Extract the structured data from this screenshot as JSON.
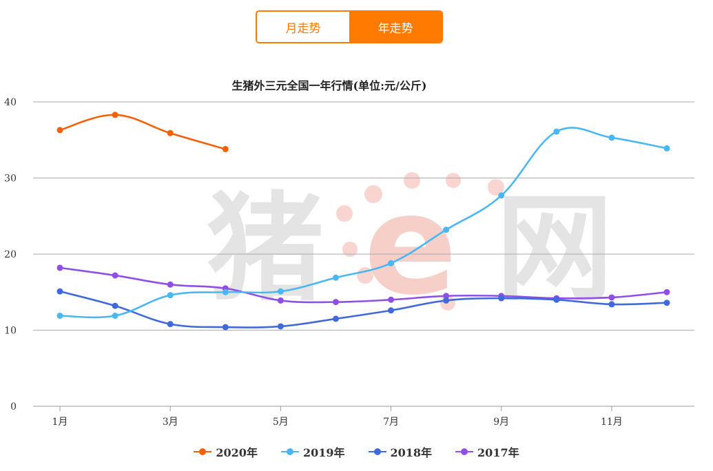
{
  "toggle": {
    "monthly_label": "月走势",
    "yearly_label": "年走势",
    "active": "yearly"
  },
  "watermark": {
    "text_left": "猪",
    "text_right": "网",
    "logo_letter": "e"
  },
  "chart_data": {
    "type": "line",
    "title": "生猪外三元全国一年行情(单位:元/公斤)",
    "xlabel": "",
    "ylabel": "",
    "x": [
      1,
      2,
      3,
      4,
      5,
      6,
      7,
      8,
      9,
      10,
      11,
      12
    ],
    "x_tick_labels": [
      {
        "x": 1,
        "label": "1月"
      },
      {
        "x": 3,
        "label": "3月"
      },
      {
        "x": 5,
        "label": "5月"
      },
      {
        "x": 7,
        "label": "7月"
      },
      {
        "x": 9,
        "label": "9月"
      },
      {
        "x": 11,
        "label": "11月"
      }
    ],
    "ylim": [
      0,
      40
    ],
    "y_ticks": [
      0,
      10,
      20,
      30,
      40
    ],
    "grid": true,
    "legend_position": "bottom",
    "series": [
      {
        "name": "2020年",
        "color": "#f0620a",
        "values": [
          36.3,
          38.3,
          35.9,
          33.8,
          null,
          null,
          null,
          null,
          null,
          null,
          null,
          null
        ]
      },
      {
        "name": "2019年",
        "color": "#4ab7f0",
        "values": [
          11.9,
          11.9,
          14.6,
          15.0,
          15.1,
          16.9,
          18.8,
          23.2,
          27.7,
          36.1,
          35.3,
          33.9
        ]
      },
      {
        "name": "2018年",
        "color": "#4169d8",
        "values": [
          15.1,
          13.2,
          10.8,
          10.4,
          10.5,
          11.5,
          12.6,
          13.9,
          14.2,
          14.0,
          13.4,
          13.6
        ]
      },
      {
        "name": "2017年",
        "color": "#8f4fe6",
        "values": [
          18.2,
          17.2,
          16.0,
          15.5,
          13.9,
          13.7,
          14.0,
          14.5,
          14.5,
          14.2,
          14.3,
          15.0
        ]
      }
    ]
  }
}
